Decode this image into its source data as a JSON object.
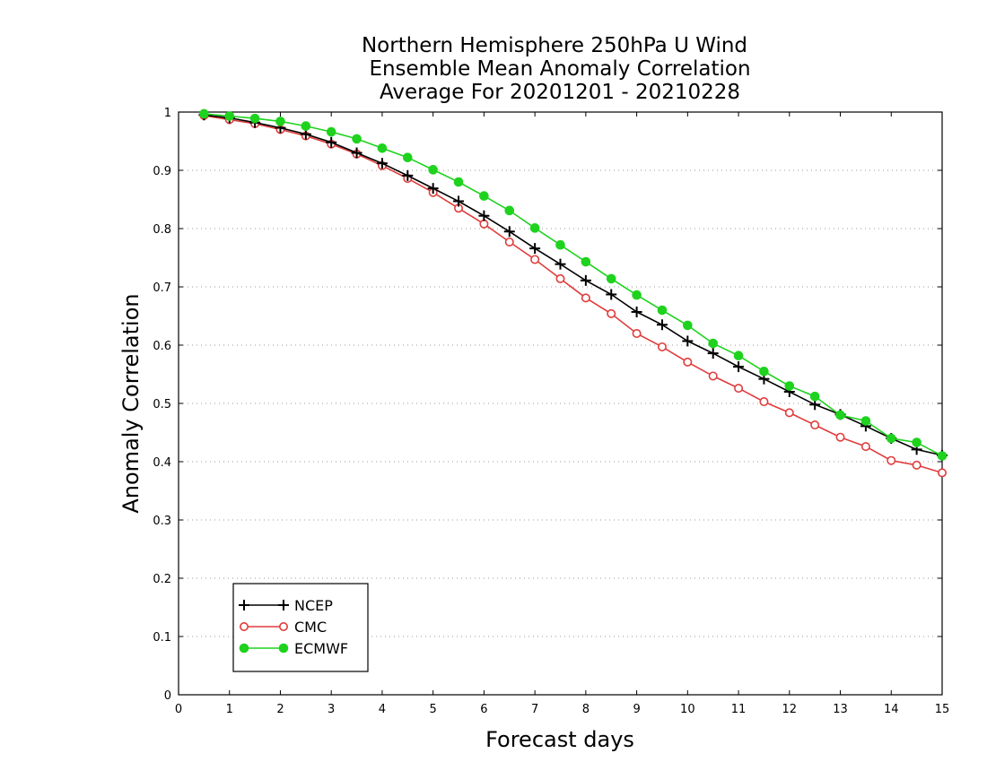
{
  "chart_data": {
    "type": "line",
    "title_lines": [
      "Northern Hemisphere 250hPa U Wind",
      "Ensemble Mean Anomaly Correlation",
      "Average For 20201201 - 20210228"
    ],
    "xlabel": "Forecast days",
    "ylabel": "Anomaly Correlation",
    "xlim": [
      0,
      15
    ],
    "ylim": [
      0,
      1
    ],
    "xticks": [
      "0",
      "1",
      "2",
      "3",
      "4",
      "5",
      "6",
      "7",
      "8",
      "9",
      "10",
      "11",
      "12",
      "13",
      "14",
      "15"
    ],
    "yticks": [
      "0",
      "0.1",
      "0.2",
      "0.3",
      "0.4",
      "0.5",
      "0.6",
      "0.7",
      "0.8",
      "0.9",
      "1"
    ],
    "grid": "horizontal dotted",
    "legend_position": "bottom-left",
    "x": [
      0.5,
      1,
      1.5,
      2,
      2.5,
      3,
      3.5,
      4,
      4.5,
      5,
      5.5,
      6,
      6.5,
      7,
      7.5,
      8,
      8.5,
      9,
      9.5,
      10,
      10.5,
      11,
      11.5,
      12,
      12.5,
      13,
      13.5,
      14,
      14.5,
      15
    ],
    "series": [
      {
        "name": "NCEP",
        "color": "#000000",
        "marker": "plus",
        "values": [
          0.995,
          0.99,
          0.982,
          0.973,
          0.962,
          0.948,
          0.93,
          0.912,
          0.891,
          0.869,
          0.847,
          0.822,
          0.795,
          0.766,
          0.739,
          0.711,
          0.687,
          0.657,
          0.635,
          0.607,
          0.586,
          0.563,
          0.542,
          0.52,
          0.498,
          0.481,
          0.461,
          0.44,
          0.421,
          0.411
        ]
      },
      {
        "name": "CMC",
        "color": "#e03c3c",
        "marker": "open-circle",
        "values": [
          0.994,
          0.987,
          0.98,
          0.97,
          0.959,
          0.945,
          0.928,
          0.908,
          0.886,
          0.862,
          0.835,
          0.808,
          0.777,
          0.747,
          0.714,
          0.681,
          0.654,
          0.62,
          0.597,
          0.571,
          0.547,
          0.526,
          0.503,
          0.484,
          0.463,
          0.442,
          0.426,
          0.402,
          0.394,
          0.381
        ]
      },
      {
        "name": "ECMWF",
        "color": "#1ed21e",
        "marker": "filled-circle",
        "values": [
          0.997,
          0.993,
          0.989,
          0.984,
          0.976,
          0.966,
          0.954,
          0.938,
          0.922,
          0.901,
          0.88,
          0.856,
          0.831,
          0.801,
          0.772,
          0.743,
          0.714,
          0.686,
          0.66,
          0.634,
          0.603,
          0.582,
          0.555,
          0.53,
          0.512,
          0.48,
          0.47,
          0.44,
          0.433,
          0.41
        ]
      }
    ]
  }
}
